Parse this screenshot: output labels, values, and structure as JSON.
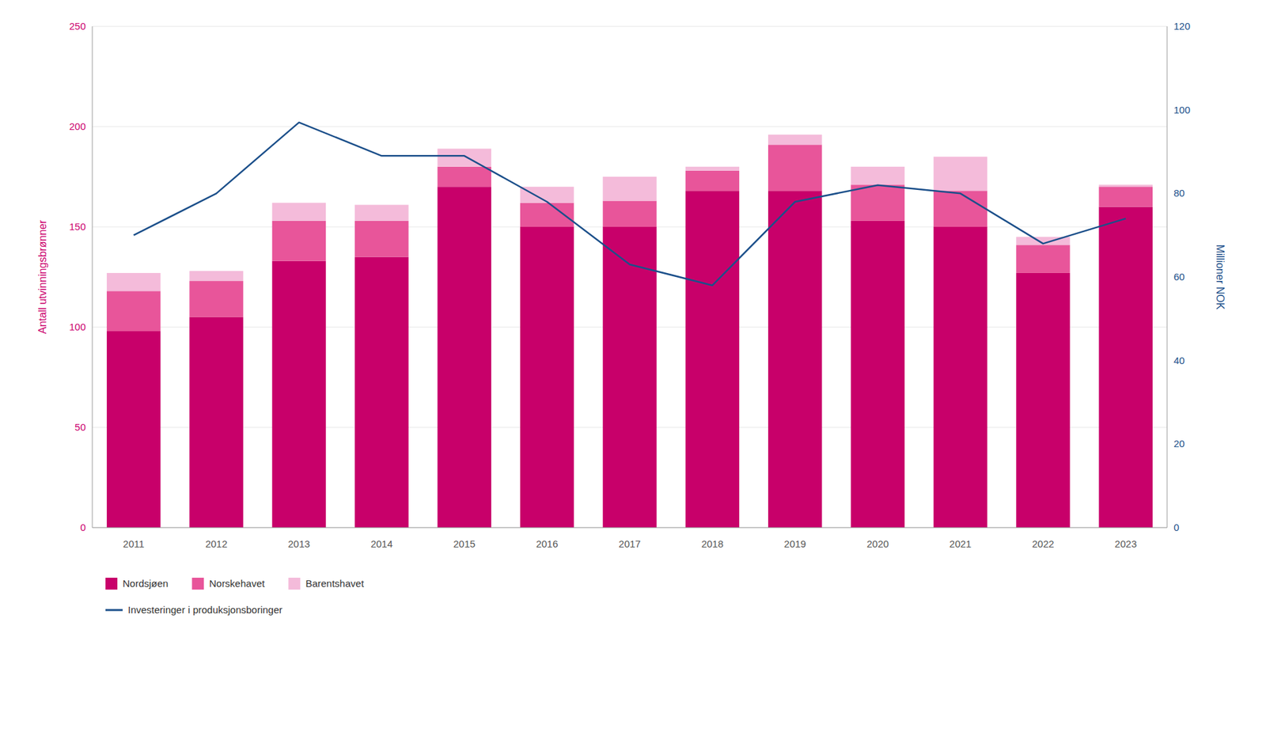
{
  "chart_data": {
    "type": "bar",
    "stacked": true,
    "categories": [
      "2011",
      "2012",
      "2013",
      "2014",
      "2015",
      "2016",
      "2017",
      "2018",
      "2019",
      "2020",
      "2021",
      "2022",
      "2023"
    ],
    "series": [
      {
        "name": "Nordsjøen",
        "color": "#C8006A",
        "values": [
          98,
          105,
          133,
          135,
          170,
          150,
          150,
          168,
          168,
          153,
          150,
          127,
          160
        ]
      },
      {
        "name": "Norskehavet",
        "color": "#E8559A",
        "values": [
          20,
          18,
          20,
          18,
          10,
          12,
          13,
          10,
          23,
          18,
          18,
          14,
          10
        ]
      },
      {
        "name": "Barentshavet",
        "color": "#F4BBDA",
        "values": [
          9,
          5,
          9,
          8,
          9,
          8,
          12,
          2,
          5,
          9,
          17,
          4,
          1
        ]
      },
      {
        "name": "Investeringer i produksjonsboringer",
        "type": "line",
        "axis": "y2",
        "color": "#1B4F8A",
        "values": [
          70,
          80,
          97,
          89,
          89,
          78,
          63,
          58,
          78,
          82,
          80,
          68,
          74
        ]
      }
    ],
    "ylabel": "Antall utvinningsbrønner",
    "y2label": "Millioner NOK",
    "ylim": [
      0,
      250
    ],
    "yticks": [
      0,
      50,
      100,
      150,
      200,
      250
    ],
    "y2lim": [
      0,
      120
    ],
    "y2ticks": [
      0,
      20,
      40,
      60,
      80,
      100,
      120
    ],
    "grid": true,
    "legend": "bottom"
  }
}
